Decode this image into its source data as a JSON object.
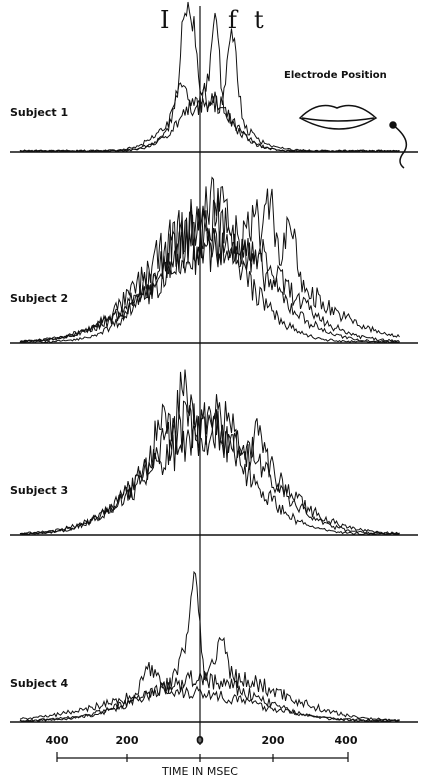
{
  "header": {
    "marks": [
      "I",
      "f",
      "t"
    ],
    "electrode_label": "Electrode Position"
  },
  "subjects": [
    "Subject 1",
    "Subject 2",
    "Subject 3",
    "Subject 4"
  ],
  "axis": {
    "tick_labels": [
      "400",
      "200",
      "0",
      "200",
      "400"
    ],
    "title": "TIME IN MSEC"
  }
}
